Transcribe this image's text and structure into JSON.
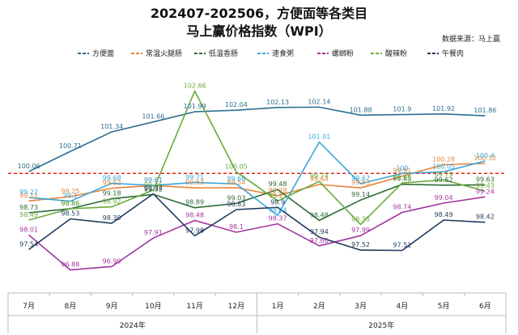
{
  "chart_data": {
    "type": "line",
    "title_line1": "202407-202506，方便面等各类目",
    "title_line2": "马上赢价格指数（WPI）",
    "source": "数据来源：马上赢",
    "categories": [
      "7月",
      "8月",
      "9月",
      "10月",
      "11月",
      "12月",
      "1月",
      "2月",
      "3月",
      "4月",
      "5月",
      "6月"
    ],
    "years": [
      {
        "label": "2024年",
        "from": 0,
        "to": 5
      },
      {
        "label": "2025年",
        "from": 6,
        "to": 11
      }
    ],
    "reference_line": {
      "value": 100,
      "color": "#e8241c",
      "style": "dashed"
    },
    "legend_position": "top",
    "grid": false,
    "series": [
      {
        "name": "方便面",
        "color": "#2b6f8f",
        "values": [
          100.06,
          100.71,
          101.34,
          101.66,
          101.99,
          102.04,
          102.13,
          102.14,
          101.88,
          101.9,
          101.92,
          101.86
        ],
        "labels": [
          "100.06",
          "100.71",
          "101.34",
          "101.66",
          "101.99",
          "102.04",
          "102.13",
          "102.14",
          "101.88",
          "101.9",
          "101.92",
          "101.86"
        ]
      },
      {
        "name": "常温火腿肠",
        "color": "#e8843a",
        "values": [
          99.11,
          99.25,
          99.52,
          99.61,
          99.53,
          99.54,
          99.28,
          99.64,
          99.53,
          99.91,
          100.28,
          100.32
        ],
        "labels": [
          "99.11",
          "99.25",
          "99.52",
          "99.61",
          "99.53",
          "99.54",
          "99.28",
          "99.64",
          "99.53",
          "99.91",
          "100.28",
          "100.32"
        ]
      },
      {
        "name": "低温香肠",
        "color": "#2e6b3a",
        "values": [
          98.73,
          98.86,
          99.18,
          99.32,
          98.89,
          99.03,
          99.48,
          98.48,
          99.14,
          99.65,
          99.62,
          99.63
        ],
        "labels": [
          "98.73",
          "98.86",
          "99.18",
          "99.32",
          "98.89",
          "99.03",
          "99.48",
          "98.48",
          "99.14",
          "99.65",
          "99.62",
          "99.63"
        ]
      },
      {
        "name": "速食粥",
        "color": "#3aa7d8",
        "values": [
          99.22,
          99.1,
          99.68,
          99.61,
          99.71,
          99.66,
          98.64,
          101.01,
          99.67,
          100.0,
          100.05,
          100.4
        ],
        "labels": [
          "99.22",
          "99.1",
          "99.68",
          "99.61",
          "99.71",
          "99.66",
          "98.64",
          "101.01",
          "99.67",
          "100",
          "100.05",
          "100.4"
        ]
      },
      {
        "name": "螺蛳粉",
        "color": "#a3369f",
        "values": [
          98.01,
          96.88,
          96.99,
          97.91,
          98.48,
          98.1,
          98.37,
          97.66,
          97.99,
          98.74,
          99.04,
          99.24
        ],
        "labels": [
          "98.01",
          "96.88",
          "96.99",
          "97.91",
          "98.48",
          "98.1",
          "98.37",
          "97.66",
          "97.99",
          "98.74",
          "99.04",
          "99.24"
        ]
      },
      {
        "name": "酸辣粉",
        "color": "#6aaa3a",
        "values": [
          98.49,
          98.86,
          98.92,
          99.46,
          102.66,
          100.05,
          99.11,
          99.74,
          98.35,
          99.69,
          99.79,
          99.43
        ],
        "labels": [
          "98.49",
          "98.86",
          "98.92",
          "99.46",
          "102.66",
          "100.05",
          "99.11",
          "99.74",
          "98.35",
          "99.69",
          "99.79",
          "99.43"
        ]
      },
      {
        "name": "午餐肉",
        "color": "#1d3b5c",
        "values": [
          97.54,
          98.53,
          98.39,
          99.34,
          97.98,
          98.83,
          98.9,
          97.94,
          97.52,
          97.51,
          98.49,
          98.42
        ],
        "labels": [
          "97.54",
          "98.53",
          "98.39",
          "99.34",
          "97.98",
          "98.83",
          "98.9",
          "97.94",
          "97.52",
          "97.51",
          "98.49",
          "98.42"
        ]
      }
    ],
    "ylim": [
      96.4,
      103.3
    ],
    "xlabel": "",
    "ylabel": ""
  }
}
